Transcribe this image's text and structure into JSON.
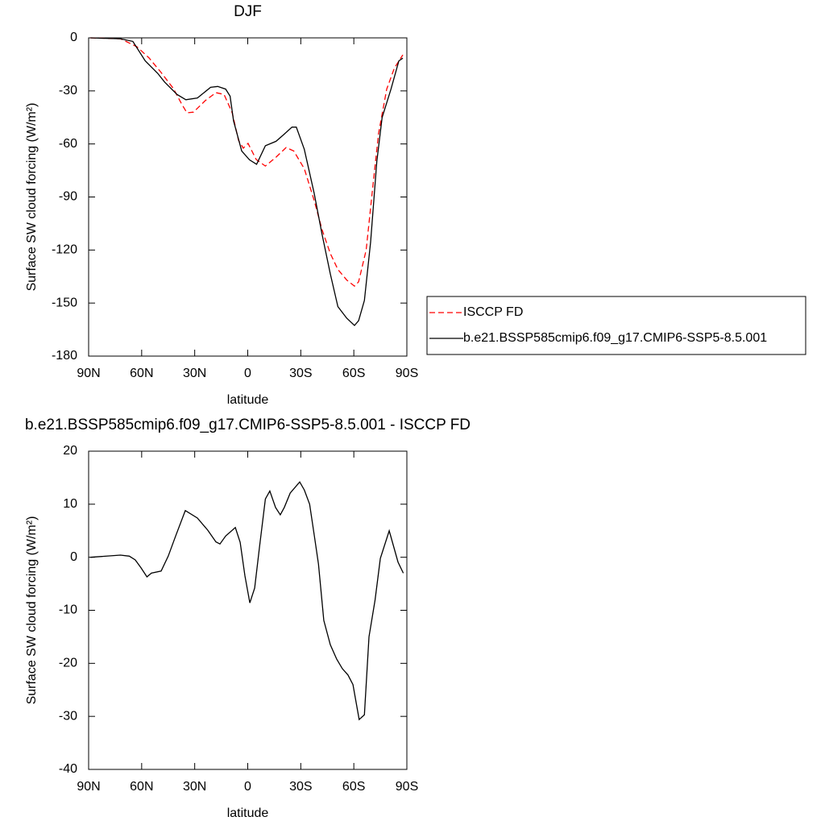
{
  "chart_data": [
    {
      "type": "line",
      "title": "DJF",
      "xlabel": "latitude",
      "ylabel": "Surface SW cloud forcing (W/m²)",
      "xlim": [
        90,
        -90
      ],
      "xticks": [
        {
          "value": 90,
          "label": "90N"
        },
        {
          "value": 60,
          "label": "60N"
        },
        {
          "value": 30,
          "label": "30N"
        },
        0,
        {
          "value": -30,
          "label": "30S"
        },
        {
          "value": -60,
          "label": "60S"
        },
        {
          "value": -90,
          "label": "90S"
        }
      ],
      "ylim": [
        -180,
        0
      ],
      "yticks": [
        0,
        -30,
        -60,
        -90,
        -120,
        -150,
        -180
      ],
      "legend": "right",
      "series": [
        {
          "name": "ISCCP FD",
          "color": "#ff0000",
          "style": "dashed",
          "x": [
            89,
            72,
            62.7,
            55.8,
            49,
            42,
            37.6,
            34.4,
            30.7,
            24,
            18,
            13.4,
            8.8,
            5.2,
            2.5,
            -0.2,
            -4.8,
            -10,
            -16,
            -21.7,
            -26,
            -32,
            -37.6,
            -42,
            -46.7,
            -51,
            -56,
            -60.4,
            -62.7,
            -67,
            -70.8,
            -74,
            -78.6,
            -83,
            -87.7
          ],
          "values": [
            0,
            -0.5,
            -5,
            -11.4,
            -19.6,
            -28.7,
            -37,
            -42.4,
            -42,
            -35.5,
            -31,
            -32,
            -42.4,
            -58,
            -62.4,
            -59.7,
            -68.8,
            -72.5,
            -67.5,
            -62,
            -64,
            -74,
            -92,
            -108.4,
            -122,
            -131,
            -137,
            -140.4,
            -138,
            -120,
            -83.5,
            -54,
            -29,
            -17,
            -9.6
          ]
        },
        {
          "name": "b.e21.BSSP585cmip6.f09_g17.CMIP6-SSP5-8.5.001",
          "color": "#000000",
          "style": "solid",
          "x": [
            89,
            72,
            65,
            58,
            51,
            47,
            40,
            35,
            28.5,
            21,
            17,
            12.5,
            10,
            8,
            3.4,
            -1,
            -5,
            -10,
            -16,
            -20,
            -25,
            -27.5,
            -32,
            -37.6,
            -42,
            -46.7,
            -51,
            -56,
            -60.4,
            -62.7,
            -66,
            -69.5,
            -73,
            -76,
            -81,
            -85.5,
            -87.7
          ],
          "values": [
            0,
            -0.5,
            -2,
            -13,
            -20,
            -25,
            -32,
            -35,
            -34,
            -28,
            -27.5,
            -29,
            -33,
            -47,
            -64,
            -69,
            -71.5,
            -61,
            -58.5,
            -55,
            -50.5,
            -50.5,
            -63,
            -88,
            -111,
            -133.5,
            -152,
            -158.6,
            -162.7,
            -160,
            -148.5,
            -115.5,
            -70,
            -45,
            -29,
            -13,
            -11.5
          ]
        }
      ]
    },
    {
      "type": "line",
      "title": "b.e21.BSSP585cmip6.f09_g17.CMIP6-SSP5-8.5.001 - ISCCP FD",
      "xlabel": "latitude",
      "ylabel": "Surface SW cloud forcing (W/m²)",
      "xlim": [
        90,
        -90
      ],
      "xticks": [
        {
          "value": 90,
          "label": "90N"
        },
        {
          "value": 60,
          "label": "60N"
        },
        {
          "value": 30,
          "label": "30N"
        },
        0,
        {
          "value": -30,
          "label": "30S"
        },
        {
          "value": -60,
          "label": "60S"
        },
        {
          "value": -90,
          "label": "90S"
        }
      ],
      "ylim": [
        -40,
        20
      ],
      "yticks": [
        20,
        10,
        0,
        -10,
        -20,
        -30,
        -40
      ],
      "series": [
        {
          "color": "#000000",
          "style": "solid",
          "x": [
            89,
            72,
            67,
            63.6,
            60.4,
            57,
            54.5,
            49,
            45,
            40.8,
            35.3,
            28.5,
            22.6,
            18,
            15.7,
            12.5,
            7,
            4.3,
            1.6,
            -1.2,
            -3.9,
            -6.6,
            -10,
            -12.5,
            -15.7,
            -18.4,
            -20.7,
            -24,
            -29.4,
            -32,
            -35,
            -37.7,
            -40,
            -43,
            -46.7,
            -50.3,
            -53.5,
            -56.7,
            -59.5,
            -63,
            -66,
            -68.6,
            -72,
            -75,
            -80,
            -85,
            -88
          ],
          "values": [
            0,
            0.4,
            0.2,
            -0.5,
            -2,
            -3.7,
            -3,
            -2.6,
            0.2,
            4,
            8.8,
            7.4,
            5.1,
            2.9,
            2.5,
            4,
            5.6,
            2.8,
            -3.5,
            -8.6,
            -5.8,
            1.8,
            11,
            12.5,
            9.4,
            8,
            9.4,
            12.1,
            14.2,
            12.7,
            10,
            4,
            -1.3,
            -11.9,
            -16.5,
            -19.2,
            -21,
            -22.2,
            -24,
            -30.6,
            -29.7,
            -15,
            -8.1,
            -0.2,
            5,
            -0.9,
            -3
          ]
        }
      ]
    }
  ]
}
